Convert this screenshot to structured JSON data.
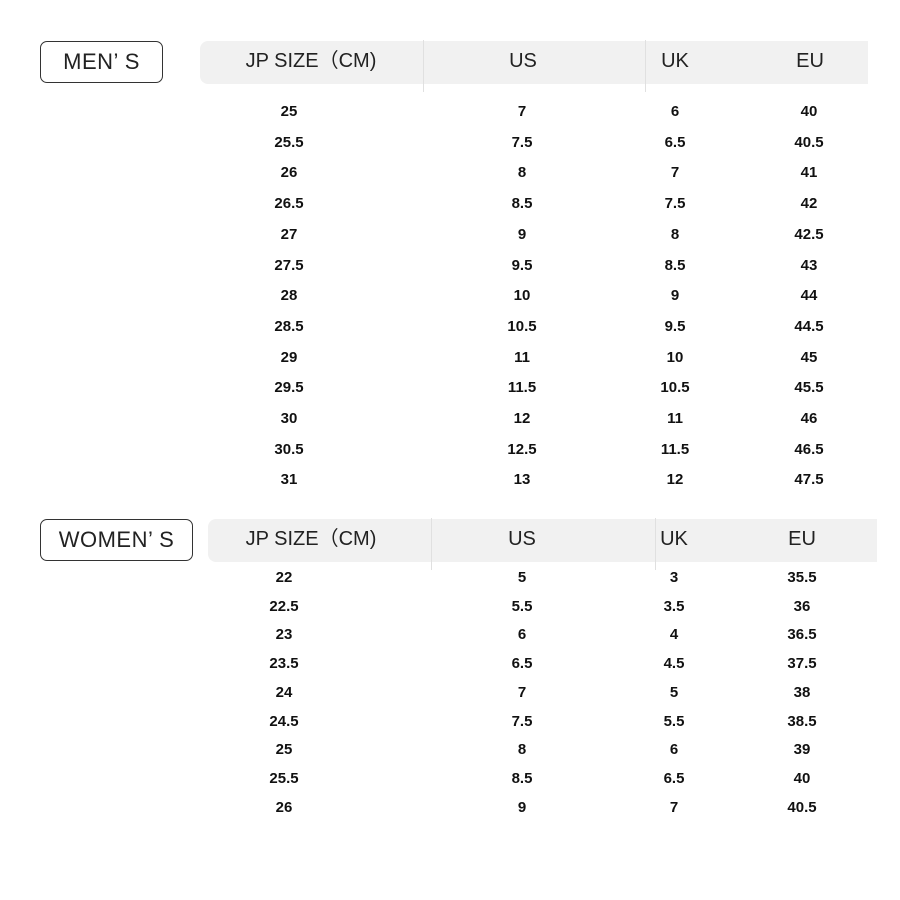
{
  "men": {
    "label": "MEN’ S",
    "headers": [
      "JP SIZE（CM)",
      "US",
      "UK",
      "EU"
    ],
    "rows": [
      [
        "25",
        "7",
        "6",
        "40"
      ],
      [
        "25.5",
        "7.5",
        "6.5",
        "40.5"
      ],
      [
        "26",
        "8",
        "7",
        "41"
      ],
      [
        "26.5",
        "8.5",
        "7.5",
        "42"
      ],
      [
        "27",
        "9",
        "8",
        "42.5"
      ],
      [
        "27.5",
        "9.5",
        "8.5",
        "43"
      ],
      [
        "28",
        "10",
        "9",
        "44"
      ],
      [
        "28.5",
        "10.5",
        "9.5",
        "44.5"
      ],
      [
        "29",
        "11",
        "10",
        "45"
      ],
      [
        "29.5",
        "11.5",
        "10.5",
        "45.5"
      ],
      [
        "30",
        "12",
        "11",
        "46"
      ],
      [
        "30.5",
        "12.5",
        "11.5",
        "46.5"
      ],
      [
        "31",
        "13",
        "12",
        "47.5"
      ]
    ]
  },
  "women": {
    "label": "WOMEN’ S",
    "headers": [
      "JP SIZE（CM)",
      "US",
      "UK",
      "EU"
    ],
    "rows": [
      [
        "22",
        "5",
        "3",
        "35.5"
      ],
      [
        "22.5",
        "5.5",
        "3.5",
        "36"
      ],
      [
        "23",
        "6",
        "4",
        "36.5"
      ],
      [
        "23.5",
        "6.5",
        "4.5",
        "37.5"
      ],
      [
        "24",
        "7",
        "5",
        "38"
      ],
      [
        "24.5",
        "7.5",
        "5.5",
        "38.5"
      ],
      [
        "25",
        "8",
        "6",
        "39"
      ],
      [
        "25.5",
        "8.5",
        "6.5",
        "40"
      ],
      [
        "26",
        "9",
        "7",
        "40.5"
      ]
    ]
  },
  "colors": {
    "header_bg": "#f1f1f1",
    "label_border": "#333333",
    "text": "#111111"
  }
}
